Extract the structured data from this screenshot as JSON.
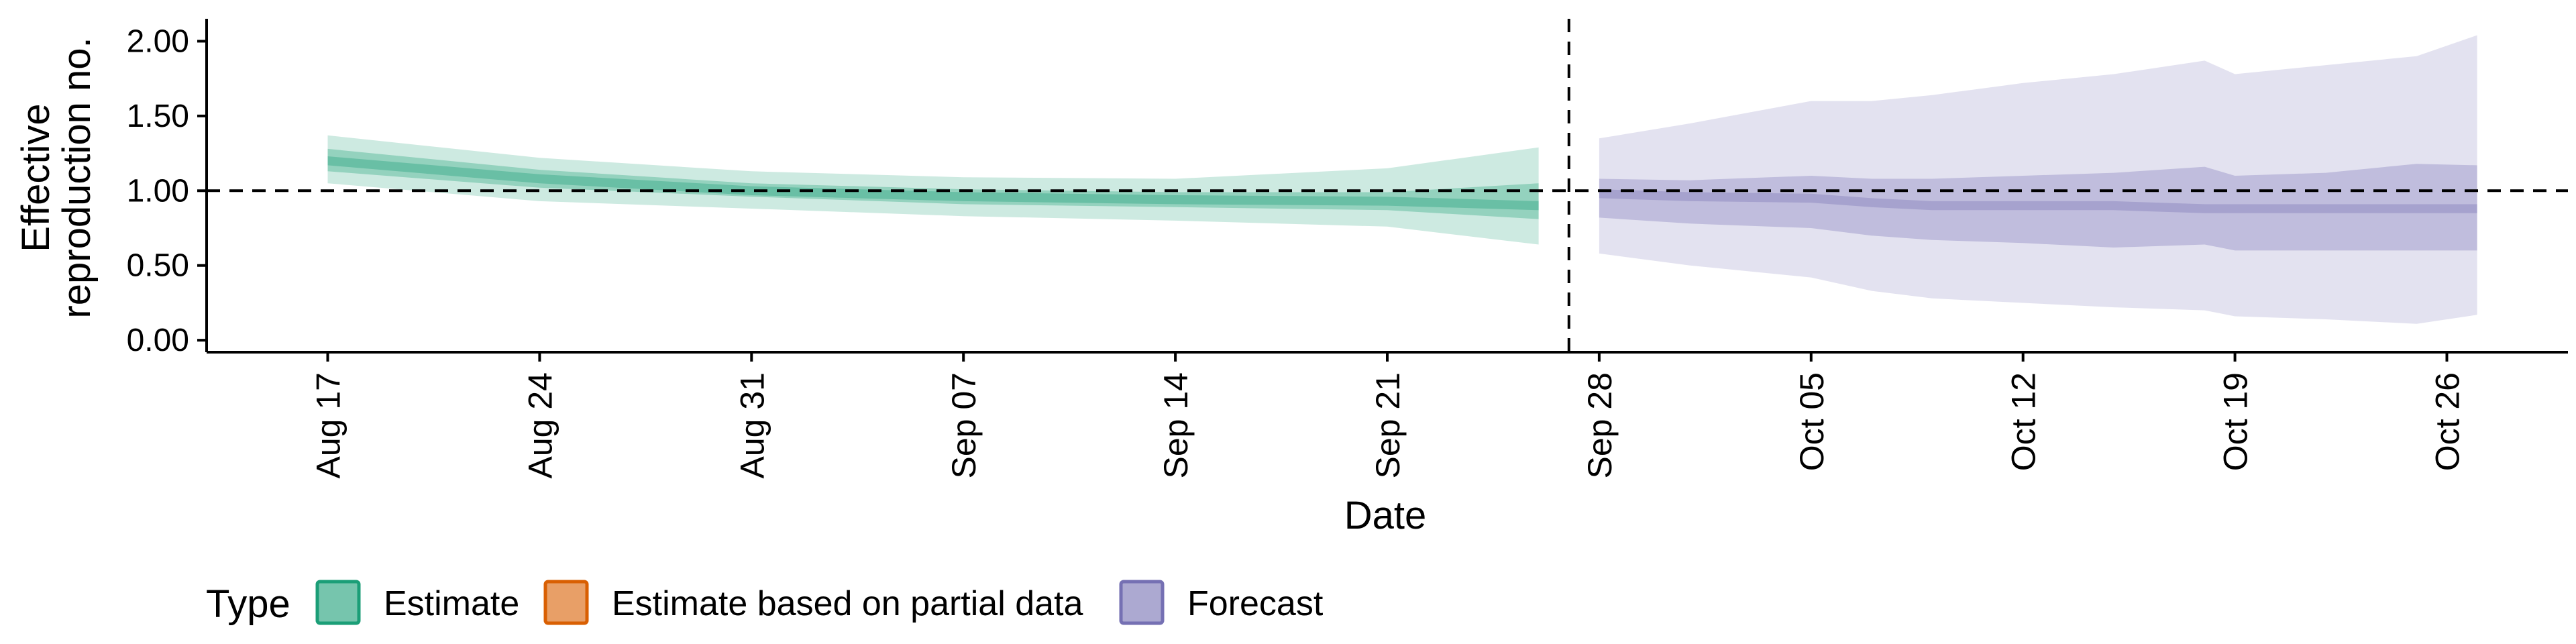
{
  "colors": {
    "estimate": "#1b9e77",
    "partial": "#d95f02",
    "forecast": "#7570b3"
  },
  "chart_data": {
    "type": "area",
    "xlabel": "Date",
    "ylabel": [
      "Effective",
      "reproduction no."
    ],
    "x_ticks": [
      "Aug 17",
      "Aug 24",
      "Aug 31",
      "Sep 07",
      "Sep 14",
      "Sep 21",
      "Sep 28",
      "Oct 05",
      "Oct 12",
      "Oct 19",
      "Oct 26"
    ],
    "y_ticks": [
      "0.00",
      "0.50",
      "1.00",
      "1.50",
      "2.00"
    ],
    "ylim": [
      -0.08,
      2.15
    ],
    "xlim": [
      "2020-08-13",
      "2020-10-30"
    ],
    "reference_lines": {
      "horizontal_y": 1.0,
      "vertical_date": "2020-09-27"
    },
    "legend": {
      "title": "Type",
      "position": "bottom-left",
      "entries": [
        "Estimate",
        "Estimate based on partial data",
        "Forecast"
      ]
    },
    "series": [
      {
        "name": "Estimate",
        "color_key": "estimate",
        "dates": [
          "2020-08-17",
          "2020-08-24",
          "2020-08-31",
          "2020-09-07",
          "2020-09-14",
          "2020-09-21",
          "2020-09-26"
        ],
        "median": [
          1.2,
          1.08,
          1.0,
          0.96,
          0.94,
          0.93,
          0.9
        ],
        "lower_90": [
          1.05,
          0.93,
          0.88,
          0.83,
          0.8,
          0.76,
          0.64
        ],
        "upper_90": [
          1.37,
          1.22,
          1.13,
          1.09,
          1.08,
          1.15,
          1.29
        ],
        "lower_50": [
          1.13,
          1.02,
          0.96,
          0.91,
          0.89,
          0.87,
          0.81
        ],
        "upper_50": [
          1.28,
          1.14,
          1.05,
          1.01,
          0.99,
          0.99,
          1.05
        ]
      },
      {
        "name": "Forecast",
        "color_key": "forecast",
        "dates": [
          "2020-09-28",
          "2020-10-01",
          "2020-10-05",
          "2020-10-07",
          "2020-10-09",
          "2020-10-12",
          "2020-10-15",
          "2020-10-18",
          "2020-10-19",
          "2020-10-22",
          "2020-10-25",
          "2020-10-27"
        ],
        "median": [
          0.98,
          0.96,
          0.95,
          0.92,
          0.9,
          0.9,
          0.9,
          0.88,
          0.88,
          0.88,
          0.88,
          0.88
        ],
        "lower_90": [
          0.58,
          0.5,
          0.42,
          0.33,
          0.28,
          0.25,
          0.22,
          0.2,
          0.16,
          0.14,
          0.11,
          0.17
        ],
        "upper_90": [
          1.35,
          1.45,
          1.6,
          1.6,
          1.64,
          1.72,
          1.78,
          1.87,
          1.78,
          1.84,
          1.9,
          2.04
        ],
        "lower_50": [
          0.82,
          0.78,
          0.75,
          0.7,
          0.67,
          0.65,
          0.62,
          0.64,
          0.6,
          0.6,
          0.6,
          0.6
        ],
        "upper_50": [
          1.08,
          1.07,
          1.1,
          1.08,
          1.08,
          1.1,
          1.12,
          1.16,
          1.1,
          1.12,
          1.18,
          1.17
        ]
      }
    ]
  }
}
